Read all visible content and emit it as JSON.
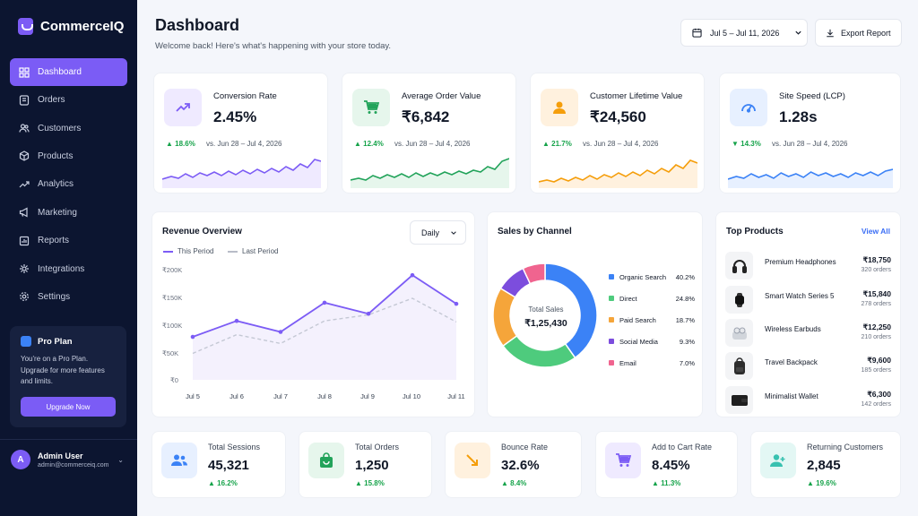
{
  "app": {
    "name": "CommerceIQ"
  },
  "sidebar": {
    "items": [
      {
        "label": "Dashboard",
        "icon": "dashboard-icon"
      },
      {
        "label": "Orders",
        "icon": "orders-icon"
      },
      {
        "label": "Customers",
        "icon": "customers-icon"
      },
      {
        "label": "Products",
        "icon": "products-icon"
      },
      {
        "label": "Analytics",
        "icon": "analytics-icon"
      },
      {
        "label": "Marketing",
        "icon": "marketing-icon"
      },
      {
        "label": "Reports",
        "icon": "reports-icon"
      },
      {
        "label": "Integrations",
        "icon": "integrations-icon"
      },
      {
        "label": "Settings",
        "icon": "settings-icon"
      }
    ],
    "active": "Dashboard",
    "pro": {
      "title": "Pro Plan",
      "text": "You're on a Pro Plan. Upgrade for more features and limits.",
      "button": "Upgrade Now"
    },
    "user": {
      "initial": "A",
      "name": "Admin User",
      "email": "admin@commerceiq.com"
    }
  },
  "header": {
    "title": "Dashboard",
    "subtitle": "Welcome back! Here's what's happening with your store today.",
    "date_range": "Jul 5 – Jul 11, 2026",
    "export": "Export Report"
  },
  "kpis": [
    {
      "label": "Conversion Rate",
      "value": "2.45%",
      "change": "18.6%",
      "direction": "up",
      "compare": "vs. Jun 28 – Jul 4, 2026",
      "color": "#7c5cf5",
      "icon": "trend-up-icon"
    },
    {
      "label": "Average Order Value",
      "value": "₹6,842",
      "change": "12.4%",
      "direction": "up",
      "compare": "vs. Jun 28 – Jul 4, 2026",
      "color": "#22a35a",
      "icon": "cart-icon"
    },
    {
      "label": "Customer Lifetime Value",
      "value": "₹24,560",
      "change": "21.7%",
      "direction": "up",
      "compare": "vs. Jun 28 – Jul 4, 2026",
      "color": "#f59e0b",
      "icon": "user-icon"
    },
    {
      "label": "Site Speed (LCP)",
      "value": "1.28s",
      "change": "14.3%",
      "direction": "down",
      "compare": "vs. Jun 28 – Jul 4, 2026",
      "color": "#3b82f6",
      "icon": "speedometer-icon"
    }
  ],
  "revenue": {
    "title": "Revenue Overview",
    "period": "Daily",
    "legend_this": "This Period",
    "legend_last": "Last Period"
  },
  "channels": {
    "title": "Sales by Channel",
    "center_label": "Total Sales",
    "center_value": "₹1,25,430",
    "items": [
      {
        "name": "Organic Search",
        "percent": "40.2%",
        "value": 40.2,
        "color": "#3b82f6"
      },
      {
        "name": "Direct",
        "percent": "24.8%",
        "value": 24.8,
        "color": "#4ecb7d"
      },
      {
        "name": "Paid Search",
        "percent": "18.7%",
        "value": 18.7,
        "color": "#f5a53a"
      },
      {
        "name": "Social Media",
        "percent": "9.3%",
        "value": 9.3,
        "color": "#7c4ddd"
      },
      {
        "name": "Email",
        "percent": "7.0%",
        "value": 7.0,
        "color": "#f0648f"
      }
    ]
  },
  "top_products": {
    "title": "Top Products",
    "view_all": "View All",
    "items": [
      {
        "name": "Premium Headphones",
        "price": "₹18,750",
        "orders": "320 orders",
        "icon": "headphones-icon"
      },
      {
        "name": "Smart Watch Series 5",
        "price": "₹15,840",
        "orders": "278 orders",
        "icon": "smartwatch-icon"
      },
      {
        "name": "Wireless Earbuds",
        "price": "₹12,250",
        "orders": "210 orders",
        "icon": "earbuds-icon"
      },
      {
        "name": "Travel Backpack",
        "price": "₹9,600",
        "orders": "185 orders",
        "icon": "backpack-icon"
      },
      {
        "name": "Minimalist Wallet",
        "price": "₹6,300",
        "orders": "142 orders",
        "icon": "wallet-icon"
      }
    ]
  },
  "bottom": [
    {
      "label": "Total Sessions",
      "value": "45,321",
      "change": "16.2%",
      "color": "#3b82f6",
      "bg": "#e7f0ff",
      "icon": "users-icon"
    },
    {
      "label": "Total Orders",
      "value": "1,250",
      "change": "15.8%",
      "color": "#22a35a",
      "bg": "#e6f6ec",
      "icon": "shopping-bag-icon"
    },
    {
      "label": "Bounce Rate",
      "value": "32.6%",
      "change": "8.4%",
      "color": "#f59e0b",
      "bg": "#fff1de",
      "icon": "bounce-arrow-icon"
    },
    {
      "label": "Add to Cart Rate",
      "value": "8.45%",
      "change": "11.3%",
      "color": "#7c5cf5",
      "bg": "#efeaff",
      "icon": "cart-icon"
    },
    {
      "label": "Returning Customers",
      "value": "2,845",
      "change": "19.6%",
      "color": "#38c1b0",
      "bg": "#e3f7f4",
      "icon": "user-plus-icon"
    }
  ],
  "chart_data": [
    {
      "type": "line",
      "title": "Revenue Overview",
      "x": [
        "Jul 5",
        "Jul 6",
        "Jul 7",
        "Jul 8",
        "Jul 9",
        "Jul 10",
        "Jul 11"
      ],
      "yticks": [
        "₹200K",
        "₹150K",
        "₹100K",
        "₹50K",
        "₹0"
      ],
      "ylim": [
        0,
        200000
      ],
      "grid": false,
      "legend": "top-left",
      "series": [
        {
          "name": "This Period",
          "values": [
            78000,
            107000,
            87000,
            140000,
            120000,
            190000,
            138000
          ],
          "color": "#7c5cf5"
        },
        {
          "name": "Last Period",
          "values": [
            48000,
            82000,
            66000,
            107000,
            118000,
            148000,
            105000
          ],
          "color": "#c4c8d4"
        }
      ]
    },
    {
      "type": "pie",
      "title": "Sales by Channel",
      "categories": [
        "Organic Search",
        "Direct",
        "Paid Search",
        "Social Media",
        "Email"
      ],
      "values": [
        40.2,
        24.8,
        18.7,
        9.3,
        7.0
      ]
    }
  ]
}
